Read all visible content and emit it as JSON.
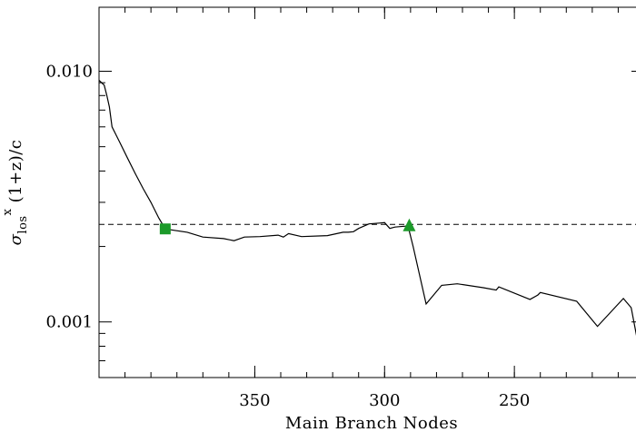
{
  "chart_data": {
    "type": "line",
    "title": "",
    "xlabel": "Main Branch Nodes",
    "ylabel_parts": {
      "symbol": "σ",
      "subscript": "los",
      "superscript": "x",
      "suffix": " (1+z)/c"
    },
    "x_axis_reversed": true,
    "xlim": [
      410,
      200
    ],
    "ylim": [
      0.0006,
      0.018
    ],
    "y_scale": "log",
    "x_ticks": [
      {
        "value": 350,
        "label": "350"
      },
      {
        "value": 300,
        "label": "300"
      },
      {
        "value": 250,
        "label": "250"
      }
    ],
    "y_ticks": [
      {
        "value": 0.001,
        "label": "0.001"
      },
      {
        "value": 0.01,
        "label": "0.010"
      }
    ],
    "reference_line": {
      "y": 0.00245,
      "style": "dashed"
    },
    "series": [
      {
        "color": "#000000",
        "x": [
          410,
          408,
          407,
          406,
          405,
          402,
          399,
          396,
          393,
          390,
          387,
          384.5,
          381,
          376,
          370,
          362,
          358,
          354,
          348,
          341,
          339,
          337,
          332,
          322,
          316,
          314,
          312,
          310,
          306,
          302,
          300,
          298,
          296,
          292,
          291,
          289,
          284,
          278,
          272,
          262,
          257,
          256,
          244,
          241,
          240,
          226,
          218,
          208,
          205,
          200
        ],
        "y": [
          0.0092,
          0.0088,
          0.008,
          0.0072,
          0.006,
          0.0052,
          0.0045,
          0.0039,
          0.0034,
          0.003,
          0.0026,
          0.00235,
          0.00232,
          0.00228,
          0.00218,
          0.00215,
          0.00211,
          0.00218,
          0.00219,
          0.00222,
          0.00218,
          0.00225,
          0.00219,
          0.00221,
          0.00228,
          0.00228,
          0.00229,
          0.00236,
          0.00246,
          0.00248,
          0.00249,
          0.00236,
          0.00239,
          0.00241,
          0.00242,
          0.002,
          0.00118,
          0.0014,
          0.00142,
          0.00137,
          0.00134,
          0.00138,
          0.00123,
          0.00128,
          0.00131,
          0.00121,
          0.00096,
          0.00124,
          0.00114,
          0.00061
        ]
      }
    ],
    "markers": [
      {
        "shape": "square",
        "x": 384.5,
        "y": 0.00235,
        "color": "#1c9a2a"
      },
      {
        "shape": "triangle",
        "x": 290.5,
        "y": 0.00242,
        "color": "#1c9a2a"
      }
    ]
  }
}
